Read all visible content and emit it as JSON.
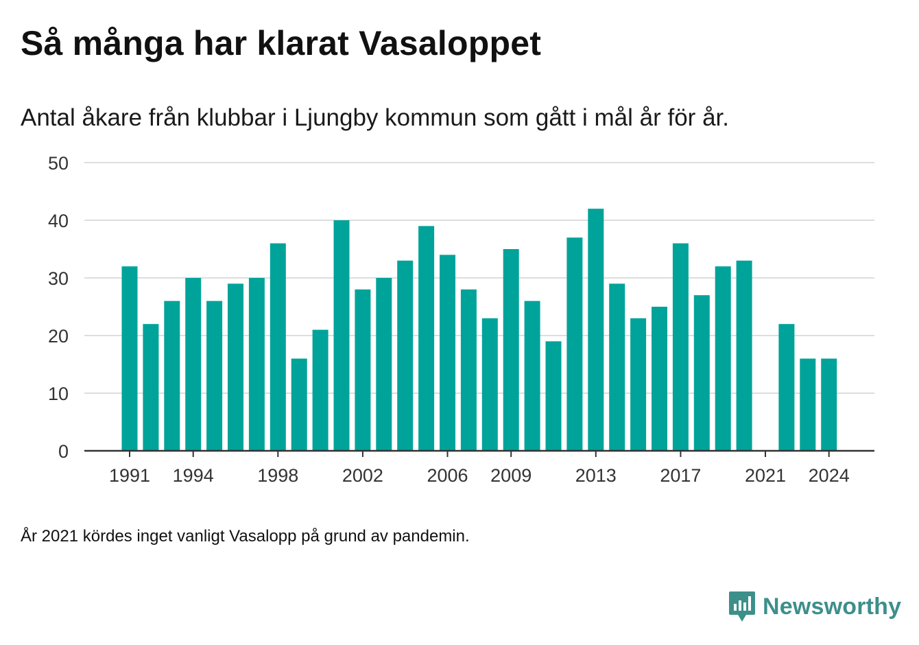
{
  "title": "Så många har klarat Vasaloppet",
  "subtitle": "Antal åkare från klubbar i Ljungby kommun som gått i mål år för år.",
  "note": "År 2021 kördes inget vanligt Vasalopp på grund av pandemin.",
  "brand": {
    "name": "Newsworthy",
    "icon": "newsworthy-logo-icon"
  },
  "colors": {
    "bar": "#00a39a",
    "grid": "#dddddd",
    "axis": "#333333",
    "brand": "#3d8f8a"
  },
  "chart_data": {
    "type": "bar",
    "title": "Så många har klarat Vasaloppet",
    "subtitle": "Antal åkare från klubbar i Ljungby kommun som gått i mål år för år.",
    "xlabel": "",
    "ylabel": "",
    "ylim": [
      0,
      50
    ],
    "yticks": [
      0,
      10,
      20,
      30,
      40,
      50
    ],
    "xticks": [
      1991,
      1994,
      1998,
      2002,
      2006,
      2009,
      2013,
      2017,
      2021,
      2024
    ],
    "grid": true,
    "categories": [
      1991,
      1992,
      1993,
      1994,
      1995,
      1996,
      1997,
      1998,
      1999,
      2000,
      2001,
      2002,
      2003,
      2004,
      2005,
      2006,
      2007,
      2008,
      2009,
      2010,
      2011,
      2012,
      2013,
      2014,
      2015,
      2016,
      2017,
      2018,
      2019,
      2020,
      2021,
      2022,
      2023,
      2024
    ],
    "values": [
      32,
      22,
      26,
      30,
      26,
      29,
      30,
      36,
      16,
      21,
      40,
      28,
      30,
      33,
      39,
      34,
      28,
      23,
      35,
      26,
      19,
      37,
      42,
      29,
      23,
      25,
      36,
      27,
      32,
      33,
      null,
      22,
      16,
      16
    ]
  }
}
